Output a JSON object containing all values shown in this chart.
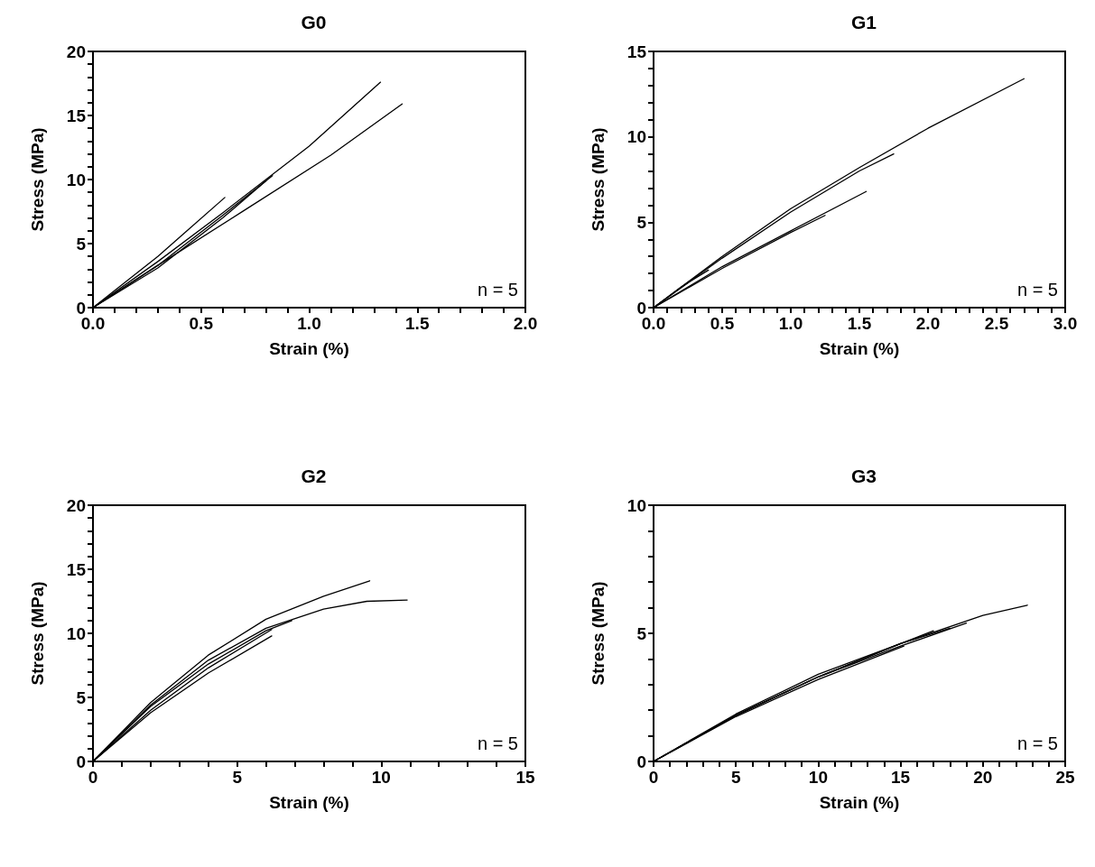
{
  "chart_data": [
    {
      "type": "line",
      "title": "G0",
      "xlabel": "Strain (%)",
      "ylabel": "Stress (MPa)",
      "annotations": [
        "n = 5"
      ],
      "marker": "none",
      "line_style": "solid",
      "xlim": [
        0,
        2
      ],
      "ylim": [
        0,
        20
      ],
      "xticks": [
        {
          "value": 0,
          "label": "0.0"
        },
        {
          "value": 0.1,
          "label": null
        },
        {
          "value": 0.2,
          "label": null
        },
        {
          "value": 0.3,
          "label": null
        },
        {
          "value": 0.4,
          "label": null
        },
        {
          "value": 0.5,
          "label": "0.5"
        },
        {
          "value": 0.6,
          "label": null
        },
        {
          "value": 0.7,
          "label": null
        },
        {
          "value": 0.8,
          "label": null
        },
        {
          "value": 0.9,
          "label": null
        },
        {
          "value": 1,
          "label": "1.0"
        },
        {
          "value": 1.1,
          "label": null
        },
        {
          "value": 1.2,
          "label": null
        },
        {
          "value": 1.3,
          "label": null
        },
        {
          "value": 1.4,
          "label": null
        },
        {
          "value": 1.5,
          "label": "1.5"
        },
        {
          "value": 1.6,
          "label": null
        },
        {
          "value": 1.7,
          "label": null
        },
        {
          "value": 1.8,
          "label": null
        },
        {
          "value": 1.9,
          "label": null
        },
        {
          "value": 2,
          "label": "2.0"
        }
      ],
      "yticks": [
        0,
        {
          "value": 1,
          "label": null
        },
        {
          "value": 2,
          "label": null
        },
        {
          "value": 3,
          "label": null
        },
        {
          "value": 4,
          "label": null
        },
        5,
        {
          "value": 6,
          "label": null
        },
        {
          "value": 7,
          "label": null
        },
        {
          "value": 8,
          "label": null
        },
        {
          "value": 9,
          "label": null
        },
        10,
        {
          "value": 11,
          "label": null
        },
        {
          "value": 12,
          "label": null
        },
        {
          "value": 13,
          "label": null
        },
        {
          "value": 14,
          "label": null
        },
        15,
        {
          "value": 16,
          "label": null
        },
        {
          "value": 17,
          "label": null
        },
        {
          "value": 18,
          "label": null
        },
        {
          "value": 19,
          "label": null
        },
        20
      ],
      "series": [
        {
          "color": "#000000",
          "x": [
            0,
            0.3,
            0.6,
            1.0,
            1.33
          ],
          "values": [
            0,
            3.6,
            7.4,
            12.6,
            17.6
          ]
        },
        {
          "color": "#000000",
          "x": [
            0,
            0.3,
            0.7,
            1.1,
            1.43
          ],
          "values": [
            0,
            3.3,
            7.6,
            11.9,
            15.9
          ]
        },
        {
          "color": "#000000",
          "x": [
            0,
            0.3,
            0.6,
            0.83
          ],
          "values": [
            0,
            3.3,
            7.2,
            10.3
          ]
        },
        {
          "color": "#000000",
          "x": [
            0,
            0.3,
            0.61
          ],
          "values": [
            0,
            4.0,
            8.6
          ]
        },
        {
          "color": "#000000",
          "x": [
            0,
            0.3,
            0.6,
            0.8
          ],
          "values": [
            0,
            3.1,
            7.0,
            9.9
          ]
        }
      ]
    },
    {
      "type": "line",
      "title": "G1",
      "xlabel": "Strain (%)",
      "ylabel": "Stress (MPa)",
      "annotations": [
        "n = 5"
      ],
      "marker": "none",
      "line_style": "solid",
      "xlim": [
        0,
        3
      ],
      "ylim": [
        0,
        15
      ],
      "xticks": [
        {
          "value": 0,
          "label": "0.0"
        },
        {
          "value": 0.1,
          "label": null
        },
        {
          "value": 0.2,
          "label": null
        },
        {
          "value": 0.3,
          "label": null
        },
        {
          "value": 0.4,
          "label": null
        },
        {
          "value": 0.5,
          "label": "0.5"
        },
        {
          "value": 0.6,
          "label": null
        },
        {
          "value": 0.7,
          "label": null
        },
        {
          "value": 0.8,
          "label": null
        },
        {
          "value": 0.9,
          "label": null
        },
        {
          "value": 1,
          "label": "1.0"
        },
        {
          "value": 1.1,
          "label": null
        },
        {
          "value": 1.2,
          "label": null
        },
        {
          "value": 1.3,
          "label": null
        },
        {
          "value": 1.4,
          "label": null
        },
        {
          "value": 1.5,
          "label": "1.5"
        },
        {
          "value": 1.6,
          "label": null
        },
        {
          "value": 1.7,
          "label": null
        },
        {
          "value": 1.8,
          "label": null
        },
        {
          "value": 1.9,
          "label": null
        },
        {
          "value": 2,
          "label": "2.0"
        },
        {
          "value": 2.1,
          "label": null
        },
        {
          "value": 2.2,
          "label": null
        },
        {
          "value": 2.3,
          "label": null
        },
        {
          "value": 2.4,
          "label": null
        },
        {
          "value": 2.5,
          "label": "2.5"
        },
        {
          "value": 2.6,
          "label": null
        },
        {
          "value": 2.7,
          "label": null
        },
        {
          "value": 2.8,
          "label": null
        },
        {
          "value": 2.9,
          "label": null
        },
        {
          "value": 3,
          "label": "3.0"
        }
      ],
      "yticks": [
        0,
        {
          "value": 1,
          "label": null
        },
        {
          "value": 2,
          "label": null
        },
        {
          "value": 3,
          "label": null
        },
        {
          "value": 4,
          "label": null
        },
        5,
        {
          "value": 6,
          "label": null
        },
        {
          "value": 7,
          "label": null
        },
        {
          "value": 8,
          "label": null
        },
        {
          "value": 9,
          "label": null
        },
        10,
        {
          "value": 11,
          "label": null
        },
        {
          "value": 12,
          "label": null
        },
        {
          "value": 13,
          "label": null
        },
        {
          "value": 14,
          "label": null
        },
        15
      ],
      "series": [
        {
          "color": "#000000",
          "x": [
            0,
            0.5,
            1.0,
            1.5,
            2.0,
            2.7
          ],
          "values": [
            0,
            3.0,
            5.8,
            8.2,
            10.5,
            13.4
          ]
        },
        {
          "color": "#000000",
          "x": [
            0,
            0.5,
            1.0,
            1.5,
            1.75
          ],
          "values": [
            0,
            2.9,
            5.6,
            8.0,
            9.0
          ]
        },
        {
          "color": "#000000",
          "x": [
            0,
            0.5,
            1.0,
            1.55
          ],
          "values": [
            0,
            2.4,
            4.5,
            6.8
          ]
        },
        {
          "color": "#000000",
          "x": [
            0,
            0.2,
            0.4
          ],
          "values": [
            0,
            1.2,
            2.2
          ]
        },
        {
          "color": "#000000",
          "x": [
            0,
            0.5,
            1.0,
            1.25
          ],
          "values": [
            0,
            2.3,
            4.4,
            5.4
          ]
        }
      ]
    },
    {
      "type": "line",
      "title": "G2",
      "xlabel": "Strain (%)",
      "ylabel": "Stress (MPa)",
      "annotations": [
        "n = 5"
      ],
      "marker": "none",
      "line_style": "solid",
      "xlim": [
        0,
        15
      ],
      "ylim": [
        0,
        20
      ],
      "xticks": [
        0,
        {
          "value": 1,
          "label": null
        },
        {
          "value": 2,
          "label": null
        },
        {
          "value": 3,
          "label": null
        },
        {
          "value": 4,
          "label": null
        },
        5,
        {
          "value": 6,
          "label": null
        },
        {
          "value": 7,
          "label": null
        },
        {
          "value": 8,
          "label": null
        },
        {
          "value": 9,
          "label": null
        },
        10,
        {
          "value": 11,
          "label": null
        },
        {
          "value": 12,
          "label": null
        },
        {
          "value": 13,
          "label": null
        },
        {
          "value": 14,
          "label": null
        },
        15
      ],
      "yticks": [
        0,
        {
          "value": 1,
          "label": null
        },
        {
          "value": 2,
          "label": null
        },
        {
          "value": 3,
          "label": null
        },
        {
          "value": 4,
          "label": null
        },
        5,
        {
          "value": 6,
          "label": null
        },
        {
          "value": 7,
          "label": null
        },
        {
          "value": 8,
          "label": null
        },
        {
          "value": 9,
          "label": null
        },
        10,
        {
          "value": 11,
          "label": null
        },
        {
          "value": 12,
          "label": null
        },
        {
          "value": 13,
          "label": null
        },
        {
          "value": 14,
          "label": null
        },
        15,
        {
          "value": 16,
          "label": null
        },
        {
          "value": 17,
          "label": null
        },
        {
          "value": 18,
          "label": null
        },
        {
          "value": 19,
          "label": null
        },
        20
      ],
      "series": [
        {
          "color": "#000000",
          "x": [
            0,
            2,
            4,
            6,
            8,
            9.6
          ],
          "values": [
            0,
            4.6,
            8.3,
            11.1,
            12.9,
            14.1
          ]
        },
        {
          "color": "#000000",
          "x": [
            0,
            2,
            4,
            6,
            8,
            9.5,
            10.9
          ],
          "values": [
            0,
            4.4,
            7.9,
            10.4,
            11.9,
            12.5,
            12.6
          ]
        },
        {
          "color": "#000000",
          "x": [
            0,
            2,
            4,
            6,
            6.9
          ],
          "values": [
            0,
            4.3,
            7.6,
            10.2,
            11.0
          ]
        },
        {
          "color": "#000000",
          "x": [
            0,
            2,
            4,
            6.2
          ],
          "values": [
            0,
            3.8,
            6.9,
            9.8
          ]
        },
        {
          "color": "#000000",
          "x": [
            0,
            2,
            4,
            6.2
          ],
          "values": [
            0,
            4.0,
            7.3,
            10.3
          ]
        }
      ]
    },
    {
      "type": "line",
      "title": "G3",
      "xlabel": "Strain (%)",
      "ylabel": "Stress (MPa)",
      "annotations": [
        "n = 5"
      ],
      "marker": "none",
      "line_style": "solid",
      "xlim": [
        0,
        25
      ],
      "ylim": [
        0,
        10
      ],
      "xticks": [
        0,
        {
          "value": 1,
          "label": null
        },
        {
          "value": 2,
          "label": null
        },
        {
          "value": 3,
          "label": null
        },
        {
          "value": 4,
          "label": null
        },
        5,
        {
          "value": 6,
          "label": null
        },
        {
          "value": 7,
          "label": null
        },
        {
          "value": 8,
          "label": null
        },
        {
          "value": 9,
          "label": null
        },
        10,
        {
          "value": 11,
          "label": null
        },
        {
          "value": 12,
          "label": null
        },
        {
          "value": 13,
          "label": null
        },
        {
          "value": 14,
          "label": null
        },
        15,
        {
          "value": 16,
          "label": null
        },
        {
          "value": 17,
          "label": null
        },
        {
          "value": 18,
          "label": null
        },
        {
          "value": 19,
          "label": null
        },
        20,
        {
          "value": 21,
          "label": null
        },
        {
          "value": 22,
          "label": null
        },
        {
          "value": 23,
          "label": null
        },
        {
          "value": 24,
          "label": null
        },
        25
      ],
      "yticks": [
        0,
        {
          "value": 1,
          "label": null
        },
        {
          "value": 2,
          "label": null
        },
        {
          "value": 3,
          "label": null
        },
        {
          "value": 4,
          "label": null
        },
        5,
        {
          "value": 6,
          "label": null
        },
        {
          "value": 7,
          "label": null
        },
        {
          "value": 8,
          "label": null
        },
        {
          "value": 9,
          "label": null
        },
        10
      ],
      "series": [
        {
          "color": "#000000",
          "x": [
            0,
            5,
            10,
            15,
            20,
            22.7
          ],
          "values": [
            0,
            1.8,
            3.3,
            4.6,
            5.7,
            6.1
          ]
        },
        {
          "color": "#000000",
          "x": [
            0,
            5,
            10,
            15,
            19
          ],
          "values": [
            0,
            1.8,
            3.3,
            4.5,
            5.4
          ]
        },
        {
          "color": "#000000",
          "x": [
            0,
            5,
            10,
            15,
            18
          ],
          "values": [
            0,
            1.8,
            3.3,
            4.6,
            5.2
          ]
        },
        {
          "color": "#000000",
          "x": [
            0,
            5,
            10,
            15,
            17
          ],
          "values": [
            0,
            1.85,
            3.4,
            4.6,
            5.1
          ]
        },
        {
          "color": "#000000",
          "x": [
            0,
            5,
            10,
            15.2
          ],
          "values": [
            0,
            1.75,
            3.2,
            4.5
          ]
        }
      ]
    }
  ]
}
